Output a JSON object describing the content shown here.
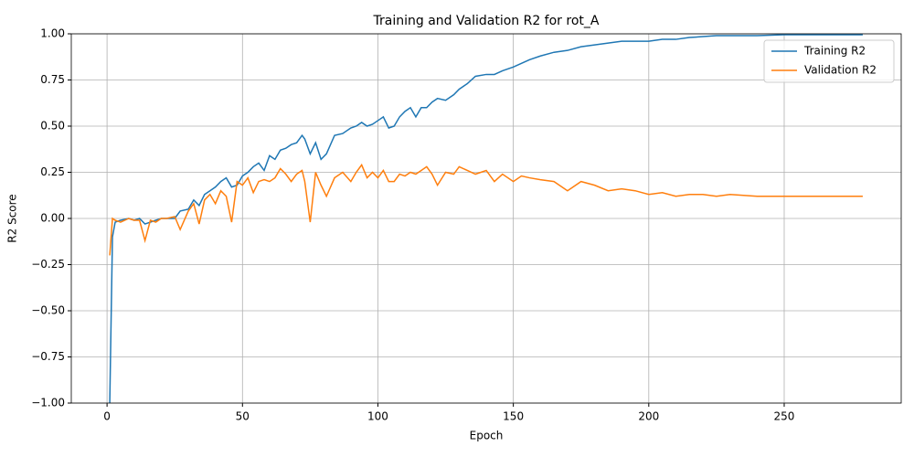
{
  "chart_data": {
    "type": "line",
    "title": "Training and Validation R2 for rot_A",
    "x_label": "Epoch",
    "y_label": "R2 Score",
    "x": [
      1,
      2,
      3,
      5,
      8,
      10,
      12,
      14,
      16,
      18,
      20,
      22,
      25,
      27,
      30,
      32,
      34,
      36,
      38,
      40,
      42,
      44,
      46,
      48,
      50,
      52,
      54,
      56,
      58,
      60,
      62,
      64,
      66,
      68,
      70,
      72,
      73,
      75,
      77,
      79,
      81,
      84,
      87,
      90,
      92,
      94,
      96,
      98,
      100,
      102,
      104,
      106,
      108,
      110,
      112,
      114,
      116,
      118,
      120,
      122,
      125,
      128,
      130,
      133,
      136,
      140,
      143,
      146,
      150,
      153,
      156,
      160,
      165,
      170,
      175,
      180,
      185,
      190,
      195,
      200,
      205,
      210,
      215,
      220,
      225,
      230,
      240,
      250,
      260,
      270,
      279
    ],
    "series": [
      {
        "name": "Training R2",
        "color": "#1f77b4",
        "values": [
          -1.0,
          -0.1,
          -0.02,
          -0.01,
          0.0,
          -0.01,
          0.0,
          -0.03,
          -0.02,
          -0.01,
          0.0,
          0.0,
          0.0,
          0.04,
          0.05,
          0.1,
          0.07,
          0.13,
          0.15,
          0.17,
          0.2,
          0.22,
          0.17,
          0.18,
          0.23,
          0.25,
          0.28,
          0.3,
          0.26,
          0.34,
          0.32,
          0.37,
          0.38,
          0.4,
          0.41,
          0.45,
          0.43,
          0.35,
          0.41,
          0.32,
          0.35,
          0.45,
          0.46,
          0.49,
          0.5,
          0.52,
          0.5,
          0.51,
          0.53,
          0.55,
          0.49,
          0.5,
          0.55,
          0.58,
          0.6,
          0.55,
          0.6,
          0.6,
          0.63,
          0.65,
          0.64,
          0.67,
          0.7,
          0.73,
          0.77,
          0.78,
          0.78,
          0.8,
          0.82,
          0.84,
          0.86,
          0.88,
          0.9,
          0.91,
          0.93,
          0.94,
          0.95,
          0.96,
          0.96,
          0.96,
          0.97,
          0.97,
          0.98,
          0.985,
          0.99,
          0.99,
          0.99,
          0.995,
          0.995,
          0.995,
          0.995
        ]
      },
      {
        "name": "Validation R2",
        "color": "#ff7f0e",
        "values": [
          -0.2,
          0.0,
          -0.01,
          -0.02,
          0.0,
          -0.01,
          -0.01,
          -0.12,
          -0.01,
          -0.02,
          0.0,
          0.0,
          0.01,
          -0.06,
          0.04,
          0.08,
          -0.03,
          0.1,
          0.13,
          0.08,
          0.15,
          0.12,
          -0.02,
          0.2,
          0.18,
          0.22,
          0.14,
          0.2,
          0.21,
          0.2,
          0.22,
          0.27,
          0.24,
          0.2,
          0.24,
          0.26,
          0.2,
          -0.02,
          0.25,
          0.18,
          0.12,
          0.22,
          0.25,
          0.2,
          0.25,
          0.29,
          0.22,
          0.25,
          0.22,
          0.26,
          0.2,
          0.2,
          0.24,
          0.23,
          0.25,
          0.24,
          0.26,
          0.28,
          0.24,
          0.18,
          0.25,
          0.24,
          0.28,
          0.26,
          0.24,
          0.26,
          0.2,
          0.24,
          0.2,
          0.23,
          0.22,
          0.21,
          0.2,
          0.15,
          0.2,
          0.18,
          0.15,
          0.16,
          0.15,
          0.13,
          0.14,
          0.12,
          0.13,
          0.13,
          0.12,
          0.13,
          0.12,
          0.12,
          0.12,
          0.12,
          0.12
        ]
      }
    ],
    "xlim": [
      -13.2,
      293.2
    ],
    "xticks": [
      0,
      50,
      100,
      150,
      200,
      250
    ],
    "ylim": [
      -1,
      1
    ],
    "yticks": [
      {
        "value": -1,
        "label": "−1.00"
      },
      {
        "value": -0.75,
        "label": "−0.75"
      },
      {
        "value": -0.5,
        "label": "−0.50"
      },
      {
        "value": -0.25,
        "label": "−0.25"
      },
      {
        "value": 0,
        "label": "0.00"
      },
      {
        "value": 0.25,
        "label": "0.25"
      },
      {
        "value": 0.5,
        "label": "0.50"
      },
      {
        "value": 0.75,
        "label": "0.75"
      },
      {
        "value": 1,
        "label": "1.00"
      }
    ],
    "grid": true,
    "legend": "upper-right"
  }
}
